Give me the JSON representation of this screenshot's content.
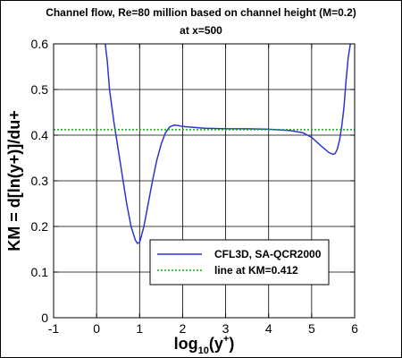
{
  "chart_data": {
    "type": "line",
    "title": "Channel flow, Re=80 million based on channel height (M=0.2)",
    "subtitle": "at x=500",
    "xlabel_base": "log",
    "xlabel_sub": "10",
    "xlabel_arg": "(y",
    "xlabel_sup": "+",
    "xlabel_close": ")",
    "ylabel": "KM = d[ln(y+)]/du+",
    "xlim": [
      -1,
      6
    ],
    "ylim": [
      0,
      0.6
    ],
    "xticks": [
      -1,
      0,
      1,
      2,
      3,
      4,
      5,
      6
    ],
    "xtick_labels": [
      "-1",
      "0",
      "1",
      "2",
      "3",
      "4",
      "5",
      "6"
    ],
    "yticks": [
      0,
      0.1,
      0.2,
      0.3,
      0.4,
      0.5,
      0.6
    ],
    "ytick_labels": [
      "0",
      "0.1",
      "0.2",
      "0.3",
      "0.4",
      "0.5",
      "0.6"
    ],
    "grid": true,
    "legend_position": "bottom-right",
    "series": [
      {
        "name": "CFL3D, SA-QCR2000",
        "color": "#2b35d6",
        "style": "solid",
        "x": [
          0.2,
          0.25,
          0.3,
          0.4,
          0.5,
          0.6,
          0.7,
          0.8,
          0.9,
          0.95,
          1.0,
          1.1,
          1.2,
          1.3,
          1.4,
          1.5,
          1.6,
          1.7,
          1.8,
          1.9,
          2.0,
          2.5,
          3.0,
          3.5,
          4.0,
          4.5,
          4.8,
          5.0,
          5.2,
          5.4,
          5.5,
          5.55,
          5.6,
          5.65,
          5.7,
          5.75,
          5.8,
          5.85,
          5.9
        ],
        "y": [
          0.6,
          0.56,
          0.5,
          0.43,
          0.37,
          0.31,
          0.25,
          0.2,
          0.17,
          0.163,
          0.165,
          0.2,
          0.25,
          0.3,
          0.345,
          0.38,
          0.405,
          0.418,
          0.422,
          0.421,
          0.419,
          0.415,
          0.414,
          0.414,
          0.413,
          0.41,
          0.405,
          0.395,
          0.378,
          0.362,
          0.358,
          0.36,
          0.37,
          0.39,
          0.42,
          0.46,
          0.52,
          0.57,
          0.6
        ]
      },
      {
        "name": "line at KM=0.412",
        "color": "#1aa51a",
        "style": "dotted",
        "x": [
          -1,
          6
        ],
        "y": [
          0.412,
          0.412
        ]
      }
    ]
  }
}
